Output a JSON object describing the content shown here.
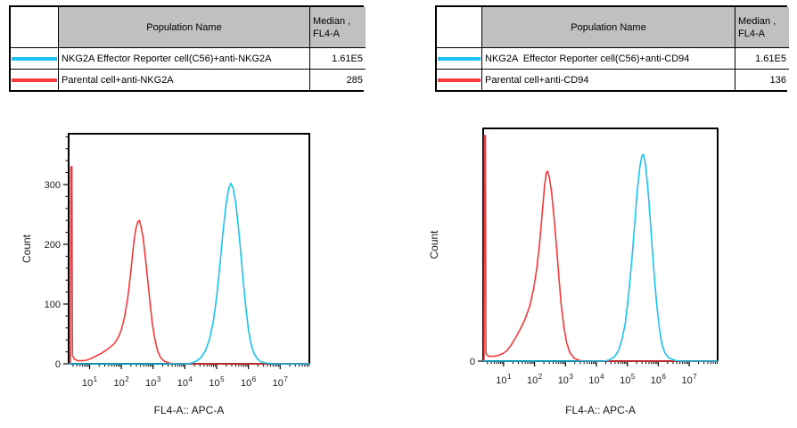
{
  "legends": [
    {
      "header": {
        "population": "Population Name",
        "median_line1": "Median ,",
        "median_line2": "FL4-A"
      },
      "rows": [
        {
          "key": "effector",
          "color": "#1bc3f0",
          "name": "NKG2A Effector Reporter cell(C56)+anti-NKG2A",
          "median": "1.61E5"
        },
        {
          "key": "parental",
          "color": "#f8393b",
          "name": "Parental cell+anti-NKG2A",
          "median": "285"
        }
      ]
    },
    {
      "header": {
        "population": "Population Name",
        "median_line1": "Median ,",
        "median_line2": "FL4-A"
      },
      "rows": [
        {
          "key": "effector",
          "color": "#1bc3f0",
          "name": "NKG2A  Effector Reporter cell(C56)+anti-CD94",
          "median": "1.61E5"
        },
        {
          "key": "parental",
          "color": "#f8393b",
          "name": "Parental cell+anti-CD94",
          "median": "136"
        }
      ]
    }
  ],
  "chart_data": [
    {
      "type": "line",
      "subtype": "flow-cytometry-histogram-overlay",
      "xlabel": "FL4-A:: APC-A",
      "ylabel": "Count",
      "x_scale": "log10",
      "x_range_log": [
        0.34,
        7.92
      ],
      "x_tick_exponents": [
        1,
        2,
        3,
        4,
        5,
        6,
        7
      ],
      "ylim": [
        0,
        385
      ],
      "y_major": [
        0,
        100,
        200,
        300
      ],
      "y_minor_step": 20,
      "grid": false,
      "series": [
        {
          "key": "parental",
          "name": "Parental cell+anti-NKG2A",
          "color": "#f8393b",
          "median": "285",
          "points_log10x_count": [
            [
              0.34,
              0
            ],
            [
              0.4,
              0
            ],
            [
              0.41,
              330
            ],
            [
              0.44,
              330
            ],
            [
              0.46,
              14
            ],
            [
              0.52,
              8
            ],
            [
              0.62,
              5
            ],
            [
              0.75,
              5
            ],
            [
              0.9,
              6
            ],
            [
              1.05,
              9
            ],
            [
              1.2,
              13
            ],
            [
              1.35,
              17
            ],
            [
              1.5,
              22
            ],
            [
              1.65,
              28
            ],
            [
              1.78,
              34
            ],
            [
              1.9,
              44
            ],
            [
              2.0,
              57
            ],
            [
              2.1,
              78
            ],
            [
              2.2,
              110
            ],
            [
              2.3,
              155
            ],
            [
              2.38,
              198
            ],
            [
              2.45,
              225
            ],
            [
              2.52,
              238
            ],
            [
              2.57,
              240
            ],
            [
              2.62,
              230
            ],
            [
              2.68,
              212
            ],
            [
              2.74,
              186
            ],
            [
              2.82,
              146
            ],
            [
              2.9,
              103
            ],
            [
              2.98,
              66
            ],
            [
              3.06,
              40
            ],
            [
              3.14,
              22
            ],
            [
              3.24,
              10
            ],
            [
              3.36,
              4
            ],
            [
              3.52,
              1
            ],
            [
              3.7,
              0
            ],
            [
              7.92,
              0
            ]
          ]
        },
        {
          "key": "effector",
          "name": "NKG2A Effector Reporter cell(C56)+anti-NKG2A",
          "color": "#1bc3f0",
          "median": "1.61E5",
          "points_log10x_count": [
            [
              0.34,
              0
            ],
            [
              4.05,
              0
            ],
            [
              4.2,
              1
            ],
            [
              4.35,
              4
            ],
            [
              4.5,
              10
            ],
            [
              4.65,
              22
            ],
            [
              4.78,
              42
            ],
            [
              4.9,
              72
            ],
            [
              5.0,
              112
            ],
            [
              5.1,
              164
            ],
            [
              5.2,
              220
            ],
            [
              5.3,
              268
            ],
            [
              5.38,
              293
            ],
            [
              5.45,
              302
            ],
            [
              5.52,
              294
            ],
            [
              5.6,
              270
            ],
            [
              5.68,
              232
            ],
            [
              5.76,
              186
            ],
            [
              5.84,
              138
            ],
            [
              5.92,
              94
            ],
            [
              6.0,
              58
            ],
            [
              6.08,
              34
            ],
            [
              6.17,
              18
            ],
            [
              6.27,
              9
            ],
            [
              6.4,
              3
            ],
            [
              6.6,
              1
            ],
            [
              6.8,
              0
            ],
            [
              7.92,
              0
            ]
          ]
        }
      ]
    },
    {
      "type": "line",
      "subtype": "flow-cytometry-histogram-overlay",
      "xlabel": "FL4-A:: APC-A",
      "ylabel": "Count",
      "x_scale": "log10",
      "x_range_log": [
        0.34,
        7.92
      ],
      "x_tick_exponents": [
        1,
        2,
        3,
        4,
        5,
        6,
        7
      ],
      "ylim": [
        0,
        385
      ],
      "y_major": [
        0
      ],
      "y_minor_step": 0,
      "grid": false,
      "series": [
        {
          "key": "parental",
          "name": "Parental cell+anti-CD94",
          "color": "#f8393b",
          "median": "136",
          "points_log10x_count": [
            [
              0.34,
              0
            ],
            [
              0.37,
              0
            ],
            [
              0.38,
              373
            ],
            [
              0.41,
              373
            ],
            [
              0.43,
              12
            ],
            [
              0.52,
              8
            ],
            [
              0.65,
              8
            ],
            [
              0.8,
              9
            ],
            [
              0.95,
              12
            ],
            [
              1.1,
              17
            ],
            [
              1.25,
              27
            ],
            [
              1.4,
              40
            ],
            [
              1.55,
              54
            ],
            [
              1.7,
              70
            ],
            [
              1.85,
              92
            ],
            [
              1.97,
              120
            ],
            [
              2.07,
              152
            ],
            [
              2.17,
              198
            ],
            [
              2.26,
              252
            ],
            [
              2.33,
              292
            ],
            [
              2.38,
              312
            ],
            [
              2.43,
              314
            ],
            [
              2.48,
              303
            ],
            [
              2.55,
              280
            ],
            [
              2.62,
              244
            ],
            [
              2.7,
              196
            ],
            [
              2.78,
              143
            ],
            [
              2.86,
              95
            ],
            [
              2.95,
              56
            ],
            [
              3.04,
              30
            ],
            [
              3.14,
              14
            ],
            [
              3.28,
              5
            ],
            [
              3.45,
              1
            ],
            [
              3.65,
              0
            ],
            [
              7.92,
              0
            ]
          ]
        },
        {
          "key": "effector",
          "name": "NKG2A  Effector Reporter cell(C56)+anti-CD94",
          "color": "#1bc3f0",
          "median": "1.61E5",
          "points_log10x_count": [
            [
              0.34,
              0
            ],
            [
              4.25,
              0
            ],
            [
              4.42,
              2
            ],
            [
              4.58,
              7
            ],
            [
              4.7,
              16
            ],
            [
              4.82,
              34
            ],
            [
              4.93,
              62
            ],
            [
              5.03,
              104
            ],
            [
              5.13,
              158
            ],
            [
              5.23,
              222
            ],
            [
              5.32,
              282
            ],
            [
              5.4,
              320
            ],
            [
              5.47,
              340
            ],
            [
              5.52,
              342
            ],
            [
              5.58,
              327
            ],
            [
              5.65,
              295
            ],
            [
              5.72,
              248
            ],
            [
              5.8,
              192
            ],
            [
              5.88,
              136
            ],
            [
              5.96,
              88
            ],
            [
              6.04,
              52
            ],
            [
              6.12,
              28
            ],
            [
              6.22,
              13
            ],
            [
              6.35,
              5
            ],
            [
              6.55,
              1
            ],
            [
              6.8,
              0
            ],
            [
              7.92,
              0
            ]
          ]
        }
      ]
    }
  ]
}
